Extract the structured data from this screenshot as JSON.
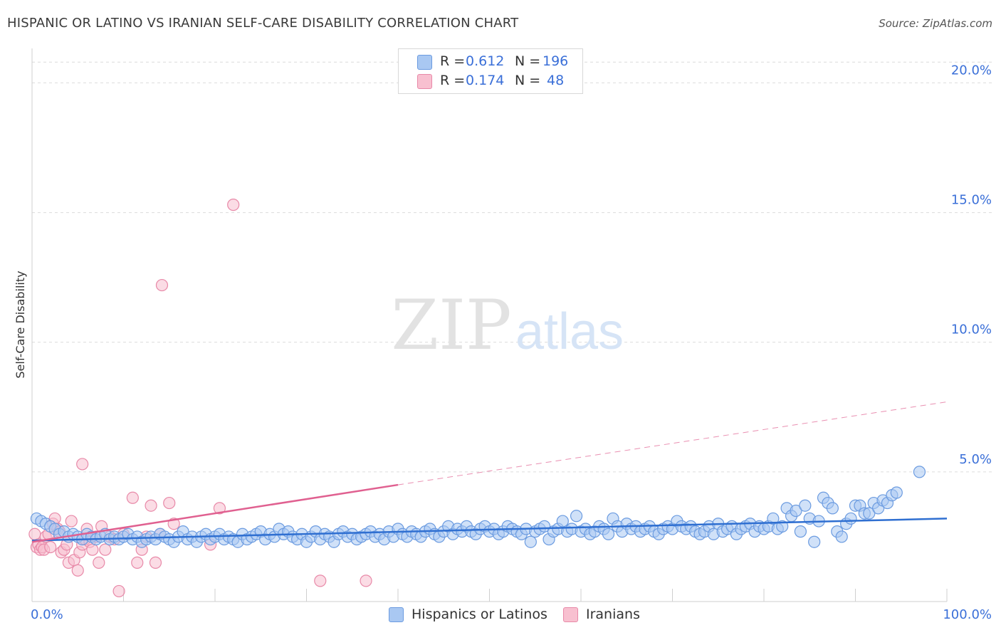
{
  "title": "HISPANIC OR LATINO VS IRANIAN SELF-CARE DISABILITY CORRELATION CHART",
  "source": "Source: ZipAtlas.com",
  "watermark": {
    "part1": "ZIP",
    "part2": "atlas"
  },
  "colors": {
    "blue_fill": "#a9c8f2",
    "blue_stroke": "#6b9be0",
    "blue_line": "#2f6fd1",
    "pink_fill": "#f8c0d0",
    "pink_stroke": "#e889a8",
    "pink_line": "#e06090",
    "axis_label": "#3a6fd8",
    "grid": "#dcdcdc"
  },
  "legend": {
    "rows": [
      {
        "r_label": "R =",
        "r_value": "0.612",
        "n_label": "N =",
        "n_value": "196"
      },
      {
        "r_label": "R =",
        "r_value": "0.174",
        "n_label": "N =",
        "n_value": "48"
      }
    ]
  },
  "bottom_legend": {
    "items": [
      {
        "label": "Hispanics or Latinos"
      },
      {
        "label": "Iranians"
      }
    ]
  },
  "chart_data": {
    "type": "scatter",
    "title": "HISPANIC OR LATINO VS IRANIAN SELF-CARE DISABILITY CORRELATION CHART",
    "xlabel": "",
    "ylabel": "Self-Care Disability",
    "xlim": [
      0,
      100
    ],
    "ylim": [
      0,
      21
    ],
    "x_tick_labels": [
      "0.0%",
      "100.0%"
    ],
    "y_ticks": [
      5,
      10,
      15,
      20
    ],
    "y_tick_labels": [
      "5.0%",
      "10.0%",
      "15.0%",
      "20.0%"
    ],
    "grid": true,
    "legend_position": "top-center",
    "series": [
      {
        "name": "Hispanics or Latinos",
        "r": 0.612,
        "n": 196,
        "trend": {
          "x": [
            0,
            100
          ],
          "y": [
            2.35,
            3.2
          ],
          "style": "solid"
        },
        "points": [
          [
            0.5,
            3.2
          ],
          [
            1.0,
            3.1
          ],
          [
            1.5,
            3.0
          ],
          [
            2.0,
            2.9
          ],
          [
            2.5,
            2.8
          ],
          [
            3.0,
            2.6
          ],
          [
            3.5,
            2.7
          ],
          [
            4.0,
            2.5
          ],
          [
            4.5,
            2.6
          ],
          [
            5.0,
            2.5
          ],
          [
            5.5,
            2.4
          ],
          [
            6.0,
            2.6
          ],
          [
            6.5,
            2.5
          ],
          [
            7.0,
            2.4
          ],
          [
            7.5,
            2.5
          ],
          [
            8.0,
            2.6
          ],
          [
            8.5,
            2.4
          ],
          [
            9.0,
            2.5
          ],
          [
            9.5,
            2.4
          ],
          [
            10.0,
            2.5
          ],
          [
            10.5,
            2.6
          ],
          [
            11.0,
            2.4
          ],
          [
            11.5,
            2.5
          ],
          [
            12.0,
            2.3
          ],
          [
            12.5,
            2.4
          ],
          [
            13.0,
            2.5
          ],
          [
            13.5,
            2.4
          ],
          [
            14.0,
            2.6
          ],
          [
            14.5,
            2.5
          ],
          [
            15.0,
            2.4
          ],
          [
            15.5,
            2.3
          ],
          [
            16.0,
            2.5
          ],
          [
            16.5,
            2.7
          ],
          [
            17.0,
            2.4
          ],
          [
            17.5,
            2.5
          ],
          [
            18.0,
            2.3
          ],
          [
            18.5,
            2.5
          ],
          [
            19.0,
            2.6
          ],
          [
            19.5,
            2.4
          ],
          [
            20.0,
            2.5
          ],
          [
            20.5,
            2.6
          ],
          [
            21.0,
            2.4
          ],
          [
            21.5,
            2.5
          ],
          [
            22.0,
            2.4
          ],
          [
            22.5,
            2.3
          ],
          [
            23.0,
            2.6
          ],
          [
            23.5,
            2.4
          ],
          [
            24.0,
            2.5
          ],
          [
            24.5,
            2.6
          ],
          [
            25.0,
            2.7
          ],
          [
            25.5,
            2.4
          ],
          [
            26.0,
            2.6
          ],
          [
            26.5,
            2.5
          ],
          [
            27.0,
            2.8
          ],
          [
            27.5,
            2.6
          ],
          [
            28.0,
            2.7
          ],
          [
            28.5,
            2.5
          ],
          [
            29.0,
            2.4
          ],
          [
            29.5,
            2.6
          ],
          [
            30.0,
            2.3
          ],
          [
            30.5,
            2.5
          ],
          [
            31.0,
            2.7
          ],
          [
            31.5,
            2.4
          ],
          [
            32.0,
            2.6
          ],
          [
            32.5,
            2.5
          ],
          [
            33.0,
            2.3
          ],
          [
            33.5,
            2.6
          ],
          [
            34.0,
            2.7
          ],
          [
            34.5,
            2.5
          ],
          [
            35.0,
            2.6
          ],
          [
            35.5,
            2.4
          ],
          [
            36.0,
            2.5
          ],
          [
            36.5,
            2.6
          ],
          [
            37.0,
            2.7
          ],
          [
            37.5,
            2.5
          ],
          [
            38.0,
            2.6
          ],
          [
            38.5,
            2.4
          ],
          [
            39.0,
            2.7
          ],
          [
            39.5,
            2.5
          ],
          [
            40.0,
            2.8
          ],
          [
            40.5,
            2.6
          ],
          [
            41.0,
            2.5
          ],
          [
            41.5,
            2.7
          ],
          [
            42.0,
            2.6
          ],
          [
            42.5,
            2.5
          ],
          [
            43.0,
            2.7
          ],
          [
            43.5,
            2.8
          ],
          [
            44.0,
            2.6
          ],
          [
            44.5,
            2.5
          ],
          [
            45.0,
            2.7
          ],
          [
            45.5,
            2.9
          ],
          [
            46.0,
            2.6
          ],
          [
            46.5,
            2.8
          ],
          [
            47.0,
            2.7
          ],
          [
            47.5,
            2.9
          ],
          [
            48.0,
            2.7
          ],
          [
            48.5,
            2.6
          ],
          [
            49.0,
            2.8
          ],
          [
            49.5,
            2.9
          ],
          [
            50.0,
            2.7
          ],
          [
            50.5,
            2.8
          ],
          [
            51.0,
            2.6
          ],
          [
            51.5,
            2.7
          ],
          [
            52.0,
            2.9
          ],
          [
            52.5,
            2.8
          ],
          [
            53.0,
            2.7
          ],
          [
            53.5,
            2.6
          ],
          [
            54.0,
            2.8
          ],
          [
            54.5,
            2.3
          ],
          [
            55.0,
            2.7
          ],
          [
            55.5,
            2.8
          ],
          [
            56.0,
            2.9
          ],
          [
            56.5,
            2.4
          ],
          [
            57.0,
            2.7
          ],
          [
            57.5,
            2.8
          ],
          [
            58.0,
            3.1
          ],
          [
            58.5,
            2.7
          ],
          [
            59.0,
            2.8
          ],
          [
            59.5,
            3.3
          ],
          [
            60.0,
            2.7
          ],
          [
            60.5,
            2.8
          ],
          [
            61.0,
            2.6
          ],
          [
            61.5,
            2.7
          ],
          [
            62.0,
            2.9
          ],
          [
            62.5,
            2.8
          ],
          [
            63.0,
            2.6
          ],
          [
            63.5,
            3.2
          ],
          [
            64.0,
            2.9
          ],
          [
            64.5,
            2.7
          ],
          [
            65.0,
            3.0
          ],
          [
            65.5,
            2.8
          ],
          [
            66.0,
            2.9
          ],
          [
            66.5,
            2.7
          ],
          [
            67.0,
            2.8
          ],
          [
            67.5,
            2.9
          ],
          [
            68.0,
            2.7
          ],
          [
            68.5,
            2.6
          ],
          [
            69.0,
            2.8
          ],
          [
            69.5,
            2.9
          ],
          [
            70.0,
            2.8
          ],
          [
            70.5,
            3.1
          ],
          [
            71.0,
            2.9
          ],
          [
            71.5,
            2.8
          ],
          [
            72.0,
            2.9
          ],
          [
            72.5,
            2.7
          ],
          [
            73.0,
            2.6
          ],
          [
            73.5,
            2.7
          ],
          [
            74.0,
            2.9
          ],
          [
            74.5,
            2.6
          ],
          [
            75.0,
            3.0
          ],
          [
            75.5,
            2.7
          ],
          [
            76.0,
            2.8
          ],
          [
            76.5,
            2.9
          ],
          [
            77.0,
            2.6
          ],
          [
            77.5,
            2.8
          ],
          [
            78.0,
            2.9
          ],
          [
            78.5,
            3.0
          ],
          [
            79.0,
            2.7
          ],
          [
            79.5,
            2.9
          ],
          [
            80.0,
            2.8
          ],
          [
            80.5,
            2.9
          ],
          [
            81.0,
            3.2
          ],
          [
            81.5,
            2.8
          ],
          [
            82.0,
            2.9
          ],
          [
            82.5,
            3.6
          ],
          [
            83.0,
            3.3
          ],
          [
            83.5,
            3.5
          ],
          [
            84.0,
            2.7
          ],
          [
            84.5,
            3.7
          ],
          [
            85.0,
            3.2
          ],
          [
            85.5,
            2.3
          ],
          [
            86.0,
            3.1
          ],
          [
            86.5,
            4.0
          ],
          [
            87.0,
            3.8
          ],
          [
            87.5,
            3.6
          ],
          [
            88.0,
            2.7
          ],
          [
            88.5,
            2.5
          ],
          [
            89.0,
            3.0
          ],
          [
            89.5,
            3.2
          ],
          [
            90.0,
            3.7
          ],
          [
            90.5,
            3.7
          ],
          [
            91.0,
            3.4
          ],
          [
            91.5,
            3.4
          ],
          [
            92.0,
            3.8
          ],
          [
            92.5,
            3.6
          ],
          [
            93.0,
            3.9
          ],
          [
            93.5,
            3.8
          ],
          [
            94.0,
            4.1
          ],
          [
            94.5,
            4.2
          ],
          [
            97.0,
            5.0
          ]
        ]
      },
      {
        "name": "Iranians",
        "r": 0.174,
        "n": 48,
        "trend": {
          "x": [
            0,
            40,
            100
          ],
          "y": [
            2.3,
            4.5,
            7.7
          ],
          "style": "solid-then-dashed"
        },
        "points": [
          [
            0.3,
            2.6
          ],
          [
            0.5,
            2.1
          ],
          [
            0.7,
            2.2
          ],
          [
            0.9,
            2.0
          ],
          [
            1.1,
            2.1
          ],
          [
            1.3,
            2.0
          ],
          [
            1.5,
            2.5
          ],
          [
            1.8,
            2.6
          ],
          [
            2.0,
            2.1
          ],
          [
            2.3,
            3.0
          ],
          [
            2.5,
            3.2
          ],
          [
            2.8,
            2.8
          ],
          [
            3.0,
            2.7
          ],
          [
            3.2,
            1.9
          ],
          [
            3.5,
            2.0
          ],
          [
            3.8,
            2.2
          ],
          [
            4.0,
            1.5
          ],
          [
            4.3,
            3.1
          ],
          [
            4.6,
            1.6
          ],
          [
            5.0,
            1.2
          ],
          [
            5.2,
            1.9
          ],
          [
            5.5,
            2.2
          ],
          [
            5.8,
            2.4
          ],
          [
            6.0,
            2.8
          ],
          [
            6.3,
            2.3
          ],
          [
            6.6,
            2.0
          ],
          [
            7.0,
            2.5
          ],
          [
            7.3,
            1.5
          ],
          [
            7.6,
            2.9
          ],
          [
            8.0,
            2.0
          ],
          [
            8.5,
            2.5
          ],
          [
            9.0,
            2.4
          ],
          [
            9.5,
            0.4
          ],
          [
            10.0,
            2.6
          ],
          [
            11.0,
            4.0
          ],
          [
            11.5,
            1.5
          ],
          [
            12.0,
            2.0
          ],
          [
            12.5,
            2.5
          ],
          [
            13.0,
            3.7
          ],
          [
            13.5,
            1.5
          ],
          [
            14.0,
            2.6
          ],
          [
            15.0,
            3.8
          ],
          [
            15.5,
            3.0
          ],
          [
            19.5,
            2.2
          ],
          [
            20.5,
            3.6
          ],
          [
            22.0,
            15.3
          ],
          [
            14.2,
            12.2
          ],
          [
            31.5,
            0.8
          ],
          [
            36.5,
            0.8
          ],
          [
            5.5,
            5.3
          ]
        ]
      }
    ]
  }
}
